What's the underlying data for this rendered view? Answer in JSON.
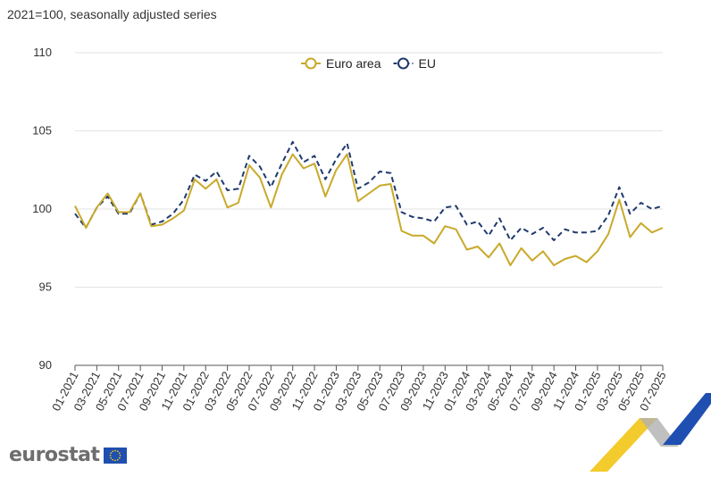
{
  "subtitle": "2021=100, seasonally adjusted series",
  "logo": {
    "text": "eurostat",
    "icon": "eu-flag-icon"
  },
  "chart_data": {
    "type": "line",
    "title": "",
    "xlabel": "",
    "ylabel": "",
    "ylim": [
      90,
      110
    ],
    "yticks": [
      "110",
      "105",
      "100",
      "95",
      "90"
    ],
    "grid": true,
    "legend": "top-center",
    "x": [
      "01-2021",
      "02-2021",
      "03-2021",
      "04-2021",
      "05-2021",
      "06-2021",
      "07-2021",
      "08-2021",
      "09-2021",
      "10-2021",
      "11-2021",
      "12-2021",
      "01-2022",
      "02-2022",
      "03-2022",
      "04-2022",
      "05-2022",
      "06-2022",
      "07-2022",
      "08-2022",
      "09-2022",
      "10-2022",
      "11-2022",
      "12-2022",
      "01-2023",
      "02-2023",
      "03-2023",
      "04-2023",
      "05-2023",
      "06-2023",
      "07-2023",
      "08-2023",
      "09-2023",
      "10-2023",
      "11-2023",
      "12-2023",
      "01-2024",
      "02-2024",
      "03-2024",
      "04-2024",
      "05-2024",
      "06-2024",
      "07-2024",
      "08-2024",
      "09-2024",
      "10-2024",
      "11-2024",
      "12-2024",
      "01-2025",
      "02-2025",
      "03-2025",
      "04-2025",
      "05-2025",
      "06-2025",
      "07-2025"
    ],
    "xtick_labels": [
      "01-2021",
      "03-2021",
      "05-2021",
      "07-2021",
      "09-2021",
      "11-2021",
      "01-2022",
      "03-2022",
      "05-2022",
      "07-2022",
      "09-2022",
      "11-2022",
      "01-2023",
      "03-2023",
      "05-2023",
      "07-2023",
      "09-2023",
      "11-2023",
      "01-2024",
      "03-2024",
      "05-2024",
      "07-2024",
      "09-2024",
      "11-2024",
      "01-2025",
      "03-2025",
      "05-2025",
      "07-2025"
    ],
    "series": [
      {
        "name": "Euro area",
        "color": "#c9a92a",
        "style": "solid",
        "values": [
          100.2,
          98.8,
          100.1,
          101.0,
          99.8,
          99.8,
          101.0,
          98.9,
          99.0,
          99.4,
          99.9,
          101.9,
          101.3,
          101.9,
          100.1,
          100.4,
          102.8,
          102.0,
          100.1,
          102.2,
          103.5,
          102.6,
          102.9,
          100.8,
          102.5,
          103.5,
          100.5,
          101.0,
          101.5,
          101.6,
          98.6,
          98.3,
          98.3,
          97.8,
          98.9,
          98.7,
          97.4,
          97.6,
          96.9,
          97.8,
          96.4,
          97.5,
          96.7,
          97.3,
          96.4,
          96.8,
          97.0,
          96.6,
          97.3,
          98.4,
          100.6,
          98.2,
          99.1,
          98.5,
          98.8
        ]
      },
      {
        "name": "EU",
        "color": "#1f3a6e",
        "style": "dashed",
        "values": [
          99.7,
          98.8,
          100.1,
          100.8,
          99.7,
          99.7,
          101.0,
          99.0,
          99.2,
          99.7,
          100.6,
          102.2,
          101.8,
          102.4,
          101.2,
          101.3,
          103.4,
          102.7,
          101.4,
          102.9,
          104.3,
          103.0,
          103.4,
          101.9,
          103.2,
          104.2,
          101.3,
          101.7,
          102.4,
          102.3,
          99.8,
          99.5,
          99.4,
          99.2,
          100.1,
          100.2,
          99.0,
          99.2,
          98.3,
          99.4,
          98.0,
          98.8,
          98.4,
          98.8,
          98.0,
          98.7,
          98.5,
          98.5,
          98.6,
          99.6,
          101.4,
          99.7,
          100.4,
          100.0,
          100.2
        ]
      }
    ]
  }
}
